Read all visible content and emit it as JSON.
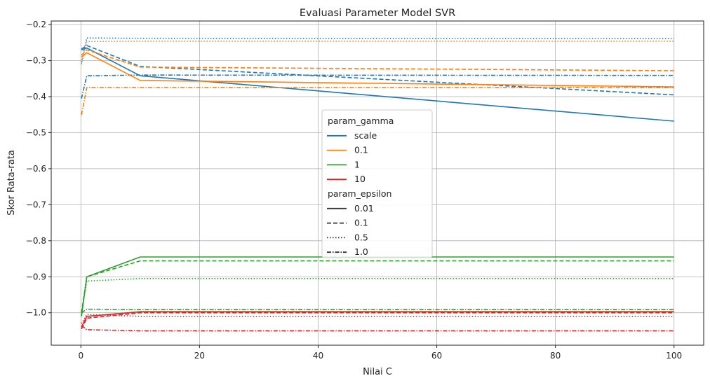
{
  "chart_data": {
    "type": "line",
    "title": "Evaluasi Parameter Model SVR",
    "xlabel": "Nilai C",
    "ylabel": "Skor Rata-rata",
    "xlim": [
      -5,
      105
    ],
    "ylim": [
      -1.09,
      -0.19
    ],
    "xticks": [
      0,
      20,
      40,
      60,
      80,
      100
    ],
    "yticks": [
      -0.2,
      -0.3,
      -0.4,
      -0.5,
      -0.6,
      -0.7,
      -0.8,
      -0.9,
      -1.0
    ],
    "ytick_labels": [
      "−0.2",
      "−0.3",
      "−0.4",
      "−0.5",
      "−0.6",
      "−0.7",
      "−0.8",
      "−0.9",
      "−1.0"
    ],
    "grid": true,
    "legend_position": "center",
    "legend": {
      "hue_title": "param_gamma",
      "hue": [
        {
          "label": "scale",
          "color": "#1f77b4"
        },
        {
          "label": "0.1",
          "color": "#ff7f0e"
        },
        {
          "label": "1",
          "color": "#2ca02c"
        },
        {
          "label": "10",
          "color": "#d62728"
        }
      ],
      "style_title": "param_epsilon",
      "style": [
        {
          "label": "0.01",
          "dash": "solid"
        },
        {
          "label": "0.1",
          "dash": "dashed"
        },
        {
          "label": "0.5",
          "dash": "dotted"
        },
        {
          "label": "1.0",
          "dash": "dashdot"
        }
      ]
    },
    "x": [
      0.1,
      1,
      10,
      100
    ],
    "series": [
      {
        "gamma": "scale",
        "epsilon": "0.01",
        "values": [
          -0.27,
          -0.265,
          -0.342,
          -0.468
        ]
      },
      {
        "gamma": "scale",
        "epsilon": "0.1",
        "values": [
          -0.268,
          -0.258,
          -0.316,
          -0.395
        ]
      },
      {
        "gamma": "scale",
        "epsilon": "0.5",
        "values": [
          -0.305,
          -0.237,
          -0.238,
          -0.239
        ]
      },
      {
        "gamma": "scale",
        "epsilon": "1.0",
        "values": [
          -0.405,
          -0.342,
          -0.34,
          -0.341
        ]
      },
      {
        "gamma": "0.1",
        "epsilon": "0.01",
        "values": [
          -0.29,
          -0.278,
          -0.355,
          -0.373
        ]
      },
      {
        "gamma": "0.1",
        "epsilon": "0.1",
        "values": [
          -0.285,
          -0.27,
          -0.318,
          -0.328
        ]
      },
      {
        "gamma": "0.1",
        "epsilon": "0.5",
        "values": [
          -0.31,
          -0.247,
          -0.246,
          -0.246
        ]
      },
      {
        "gamma": "0.1",
        "epsilon": "1.0",
        "values": [
          -0.45,
          -0.375,
          -0.375,
          -0.375
        ]
      },
      {
        "gamma": "1",
        "epsilon": "0.01",
        "values": [
          -1.01,
          -0.9,
          -0.845,
          -0.845
        ]
      },
      {
        "gamma": "1",
        "epsilon": "0.1",
        "values": [
          -1.0,
          -0.9,
          -0.856,
          -0.856
        ]
      },
      {
        "gamma": "1",
        "epsilon": "0.5",
        "values": [
          -1.0,
          -0.912,
          -0.905,
          -0.905
        ]
      },
      {
        "gamma": "1",
        "epsilon": "1.0",
        "values": [
          -1.0,
          -0.99,
          -0.991,
          -0.991
        ]
      },
      {
        "gamma": "10",
        "epsilon": "0.01",
        "values": [
          -1.04,
          -1.01,
          -0.997,
          -0.997
        ]
      },
      {
        "gamma": "10",
        "epsilon": "0.1",
        "values": [
          -1.045,
          -1.015,
          -1.0,
          -1.0
        ]
      },
      {
        "gamma": "10",
        "epsilon": "0.5",
        "values": [
          -1.03,
          -1.005,
          -1.01,
          -1.01
        ]
      },
      {
        "gamma": "10",
        "epsilon": "1.0",
        "values": [
          -1.035,
          -1.047,
          -1.05,
          -1.05
        ]
      }
    ]
  }
}
